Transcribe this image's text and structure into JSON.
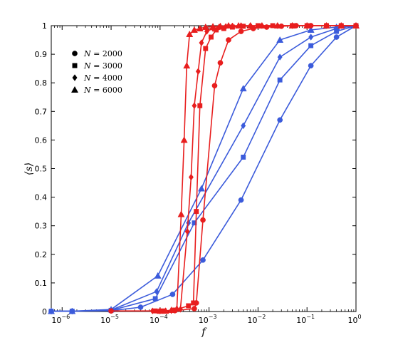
{
  "chart_data": {
    "type": "line",
    "xlabel": "f",
    "ylabel": "⟨s⟩",
    "xscale": "log",
    "xlim": [
      6e-07,
      1
    ],
    "ylim": [
      0,
      1
    ],
    "xticks": [
      {
        "value": 1e-06,
        "base": "10",
        "exp": "−6"
      },
      {
        "value": 1e-05,
        "base": "10",
        "exp": "−5"
      },
      {
        "value": 0.0001,
        "base": "10",
        "exp": "−4"
      },
      {
        "value": 0.001,
        "base": "10",
        "exp": "−3"
      },
      {
        "value": 0.01,
        "base": "10",
        "exp": "−2"
      },
      {
        "value": 0.1,
        "base": "10",
        "exp": "−1"
      },
      {
        "value": 1,
        "base": "10",
        "exp": "0"
      }
    ],
    "yticks": [
      "0",
      "0.1",
      "0.2",
      "0.3",
      "0.4",
      "0.5",
      "0.6",
      "0.7",
      "0.8",
      "0.9",
      "1"
    ],
    "grid": false,
    "legend_position": "upper-left",
    "legend": [
      {
        "marker": "circle",
        "prefix": "N",
        "text": " = 2000"
      },
      {
        "marker": "square",
        "prefix": "N",
        "text": " = 3000"
      },
      {
        "marker": "diamond",
        "prefix": "N",
        "text": " = 4000"
      },
      {
        "marker": "triangle",
        "prefix": "N",
        "text": " = 6000"
      }
    ],
    "colors": {
      "blue": "#3b5bdb",
      "red": "#e81e1e"
    },
    "series": [
      {
        "color": "blue",
        "marker": "circle",
        "x": [
          6e-07,
          1.6e-06,
          1e-05,
          4e-05,
          0.00018,
          0.00075,
          0.0045,
          0.028,
          0.12,
          0.4,
          1
        ],
        "y": [
          0.001,
          0.001,
          0.003,
          0.015,
          0.06,
          0.18,
          0.39,
          0.67,
          0.86,
          0.96,
          1.0
        ]
      },
      {
        "color": "blue",
        "marker": "square",
        "x": [
          6e-07,
          1.6e-06,
          1e-05,
          8e-05,
          0.0005,
          0.005,
          0.028,
          0.12,
          0.4,
          1
        ],
        "y": [
          0.001,
          0.001,
          0.004,
          0.045,
          0.31,
          0.54,
          0.81,
          0.93,
          0.98,
          1.0
        ]
      },
      {
        "color": "blue",
        "marker": "diamond",
        "x": [
          6e-07,
          1.6e-06,
          1e-05,
          8.5e-05,
          0.00038,
          0.005,
          0.028,
          0.12,
          0.4,
          1
        ],
        "y": [
          0.001,
          0.001,
          0.005,
          0.07,
          0.31,
          0.65,
          0.89,
          0.96,
          0.99,
          1.0
        ]
      },
      {
        "color": "blue",
        "marker": "triangle",
        "x": [
          6e-07,
          1.6e-06,
          1e-05,
          9e-05,
          0.0007,
          0.005,
          0.028,
          0.12,
          0.4,
          1
        ],
        "y": [
          0.001,
          0.001,
          0.007,
          0.125,
          0.43,
          0.78,
          0.95,
          0.985,
          0.995,
          1.0
        ]
      },
      {
        "color": "red",
        "marker": "circle",
        "x": [
          1e-05,
          0.0001,
          0.0002,
          0.0005,
          0.00055,
          0.00075,
          0.0013,
          0.0017,
          0.0025,
          0.0045,
          0.008,
          0.015,
          0.03,
          0.06,
          0.12,
          0.25,
          0.5,
          1
        ],
        "y": [
          0.002,
          0.002,
          0.003,
          0.01,
          0.03,
          0.32,
          0.79,
          0.87,
          0.95,
          0.98,
          0.99,
          0.995,
          0.998,
          1.0,
          1.0,
          1.0,
          1.0,
          1.0
        ]
      },
      {
        "color": "red",
        "marker": "square",
        "x": [
          8e-05,
          0.00012,
          0.0002,
          0.00038,
          0.00048,
          0.00055,
          0.00065,
          0.00085,
          0.0011,
          0.0014,
          0.002,
          0.003,
          0.005,
          0.01,
          0.02,
          0.05,
          0.1,
          0.25,
          0.5,
          1
        ],
        "y": [
          0.002,
          0.002,
          0.005,
          0.02,
          0.03,
          0.35,
          0.72,
          0.92,
          0.96,
          0.985,
          0.99,
          0.995,
          0.998,
          1.0,
          1.0,
          1.0,
          1.0,
          1.0,
          1.0,
          1.0
        ]
      },
      {
        "color": "red",
        "marker": "diamond",
        "x": [
          7e-05,
          0.0001,
          0.00017,
          0.00026,
          0.00036,
          0.00043,
          0.0005,
          0.0006,
          0.0007,
          0.0009,
          0.0012,
          0.0016,
          0.0022,
          0.003,
          0.0045,
          0.007,
          0.012,
          0.025,
          0.05,
          0.1,
          0.25,
          0.5,
          1
        ],
        "y": [
          0.002,
          0.002,
          0.003,
          0.008,
          0.28,
          0.47,
          0.72,
          0.84,
          0.94,
          0.98,
          0.99,
          0.995,
          0.997,
          0.999,
          1.0,
          1.0,
          1.0,
          1.0,
          1.0,
          1.0,
          1.0,
          1.0,
          1.0
        ]
      },
      {
        "color": "red",
        "marker": "triangle",
        "x": [
          0.0001,
          0.00013,
          0.00017,
          0.00022,
          0.00027,
          0.00031,
          0.00035,
          0.0004,
          0.0005,
          0.00065,
          0.00085,
          0.0012,
          0.0017,
          0.0025,
          0.004,
          0.007,
          0.012,
          0.025,
          0.05,
          0.1,
          0.25,
          0.5,
          1
        ],
        "y": [
          0.002,
          0.002,
          0.005,
          0.01,
          0.34,
          0.6,
          0.86,
          0.97,
          0.985,
          0.99,
          0.995,
          0.997,
          0.998,
          1.0,
          1.0,
          1.0,
          1.0,
          1.0,
          1.0,
          1.0,
          1.0,
          1.0,
          1.0
        ]
      }
    ]
  }
}
